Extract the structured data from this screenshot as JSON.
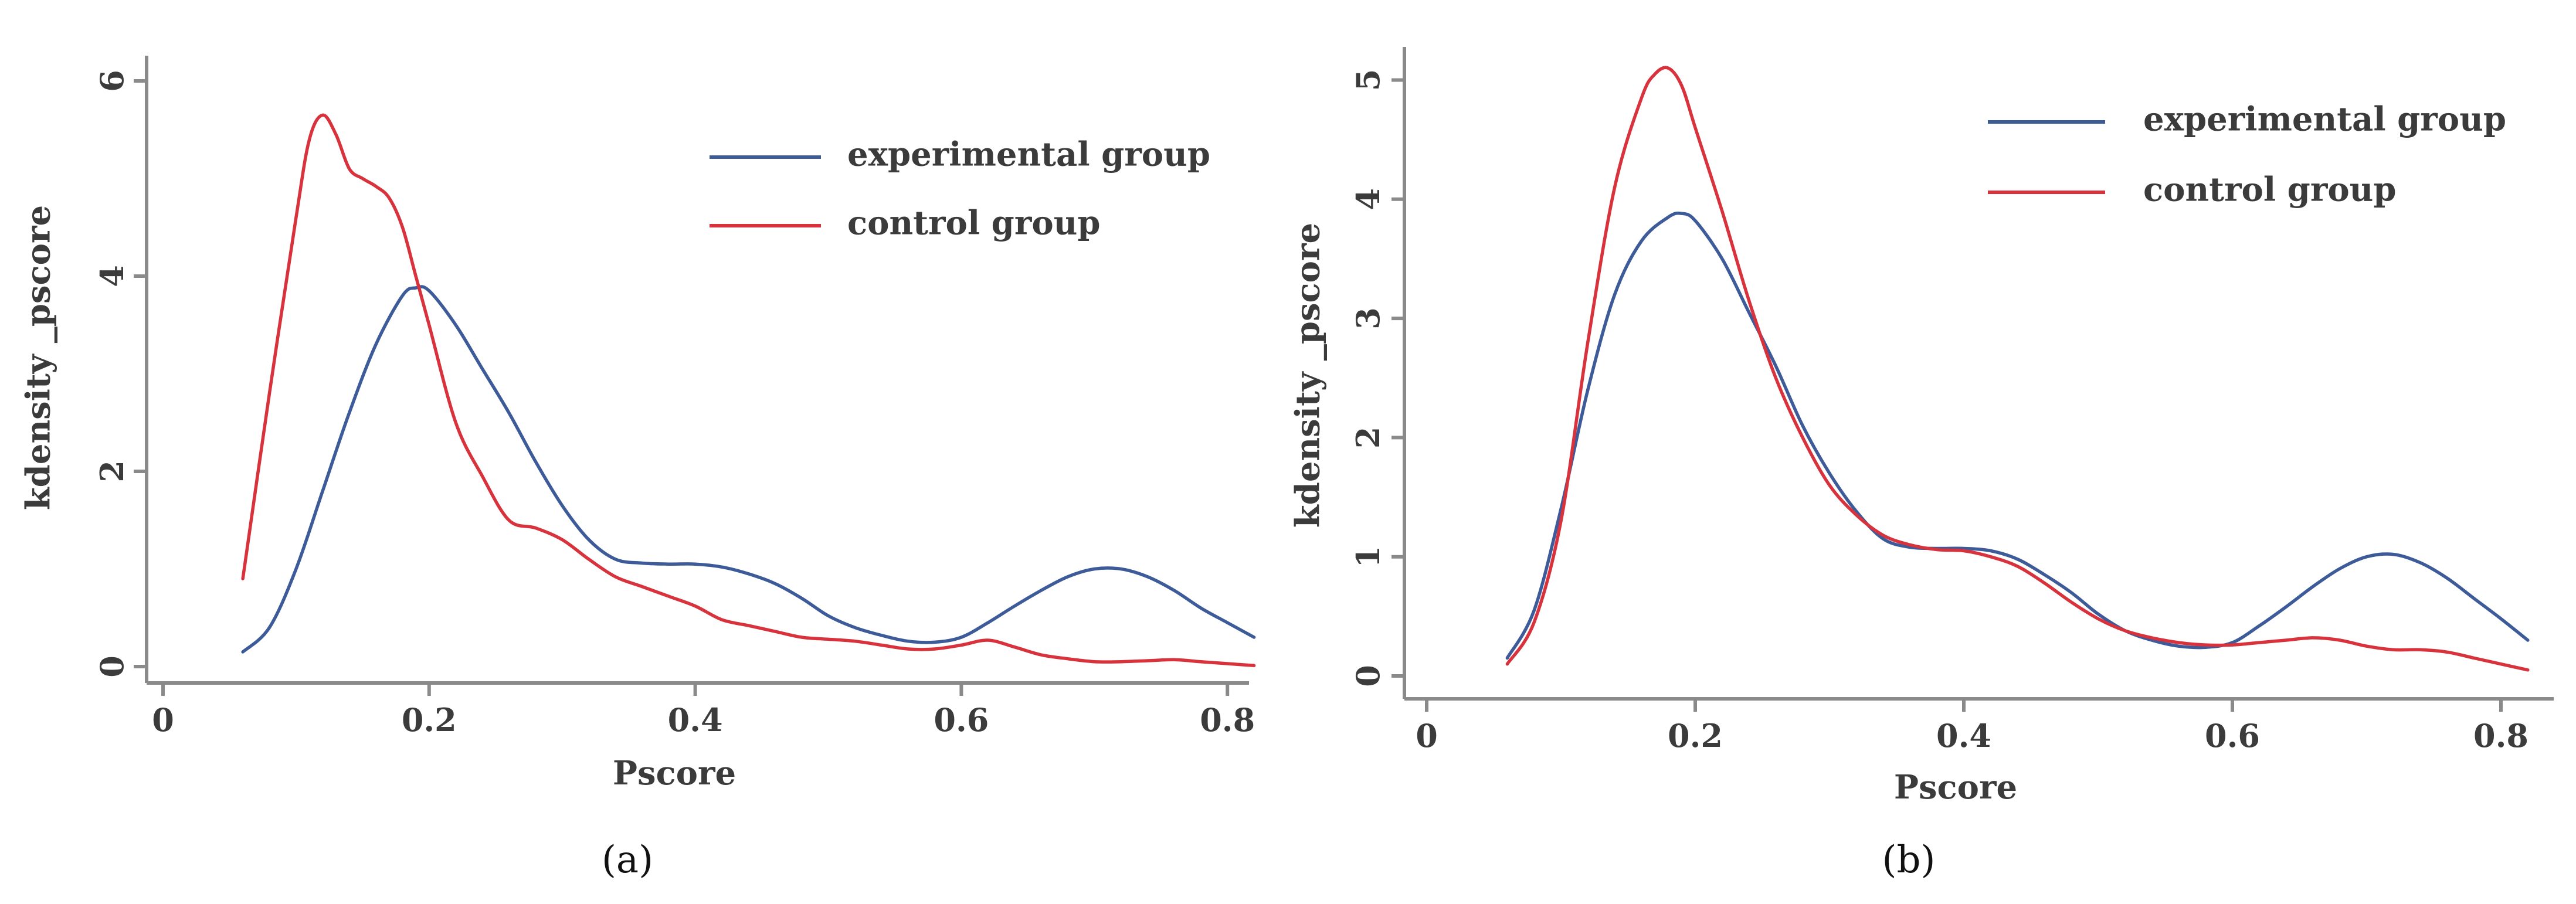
{
  "chart_data": [
    {
      "panel": "a",
      "caption": "(a)",
      "type": "line",
      "xlabel": "Pscore",
      "ylabel": "kdensity _pscore",
      "xlim": [
        0,
        0.83
      ],
      "ylim": [
        0,
        6.1
      ],
      "xticks": [
        0,
        0.2,
        0.4,
        0.6,
        0.8
      ],
      "xtick_labels": [
        "0",
        "0.2",
        "0.4",
        "0.6",
        "0.8"
      ],
      "yticks": [
        0,
        2,
        4,
        6
      ],
      "ytick_labels": [
        "0",
        "2",
        "4",
        "6"
      ],
      "legend": [
        "experimental group",
        "control group"
      ],
      "legend_position": "top-right",
      "series": [
        {
          "name": "experimental group",
          "color": "#3d5a99",
          "x": [
            0.06,
            0.08,
            0.1,
            0.12,
            0.14,
            0.16,
            0.18,
            0.19,
            0.2,
            0.22,
            0.24,
            0.26,
            0.28,
            0.3,
            0.32,
            0.34,
            0.36,
            0.38,
            0.4,
            0.42,
            0.44,
            0.46,
            0.48,
            0.5,
            0.52,
            0.54,
            0.56,
            0.58,
            0.6,
            0.62,
            0.64,
            0.66,
            0.68,
            0.7,
            0.72,
            0.74,
            0.76,
            0.78,
            0.8,
            0.82
          ],
          "y": [
            0.15,
            0.4,
            1.0,
            1.8,
            2.6,
            3.3,
            3.8,
            3.88,
            3.85,
            3.5,
            3.05,
            2.6,
            2.1,
            1.65,
            1.3,
            1.1,
            1.06,
            1.05,
            1.05,
            1.02,
            0.95,
            0.85,
            0.7,
            0.52,
            0.4,
            0.32,
            0.26,
            0.25,
            0.3,
            0.45,
            0.62,
            0.78,
            0.92,
            1.0,
            1.0,
            0.92,
            0.78,
            0.6,
            0.45,
            0.3
          ]
        },
        {
          "name": "control group",
          "color": "#d8323c",
          "x": [
            0.06,
            0.08,
            0.1,
            0.11,
            0.12,
            0.13,
            0.14,
            0.15,
            0.16,
            0.17,
            0.18,
            0.19,
            0.2,
            0.22,
            0.24,
            0.26,
            0.28,
            0.3,
            0.32,
            0.34,
            0.36,
            0.38,
            0.4,
            0.42,
            0.44,
            0.46,
            0.48,
            0.5,
            0.52,
            0.54,
            0.56,
            0.58,
            0.6,
            0.62,
            0.64,
            0.66,
            0.68,
            0.7,
            0.72,
            0.74,
            0.76,
            0.78,
            0.8,
            0.82
          ],
          "y": [
            0.9,
            2.8,
            4.6,
            5.4,
            5.65,
            5.45,
            5.1,
            5.0,
            4.92,
            4.8,
            4.5,
            4.0,
            3.5,
            2.5,
            1.95,
            1.5,
            1.42,
            1.3,
            1.1,
            0.92,
            0.82,
            0.72,
            0.62,
            0.48,
            0.42,
            0.36,
            0.3,
            0.28,
            0.26,
            0.22,
            0.18,
            0.18,
            0.22,
            0.27,
            0.2,
            0.12,
            0.08,
            0.05,
            0.05,
            0.06,
            0.07,
            0.05,
            0.03,
            0.01
          ]
        }
      ]
    },
    {
      "panel": "b",
      "caption": "(b)",
      "type": "line",
      "xlabel": "Pscore",
      "ylabel": "kdensity _pscore",
      "xlim": [
        0,
        0.83
      ],
      "ylim": [
        0,
        5.3
      ],
      "xticks": [
        0,
        0.2,
        0.4,
        0.6,
        0.8
      ],
      "xtick_labels": [
        "0",
        "0.2",
        "0.4",
        "0.6",
        "0.8"
      ],
      "yticks": [
        0,
        1,
        2,
        3,
        4,
        5
      ],
      "ytick_labels": [
        "0",
        "1",
        "2",
        "3",
        "4",
        "5"
      ],
      "legend": [
        "experimental group",
        "control group"
      ],
      "legend_position": "top-right",
      "series": [
        {
          "name": "experimental group",
          "color": "#3d5a99",
          "x": [
            0.06,
            0.08,
            0.1,
            0.12,
            0.14,
            0.16,
            0.18,
            0.19,
            0.2,
            0.22,
            0.24,
            0.26,
            0.28,
            0.3,
            0.32,
            0.34,
            0.36,
            0.38,
            0.4,
            0.42,
            0.44,
            0.46,
            0.48,
            0.5,
            0.52,
            0.54,
            0.56,
            0.58,
            0.6,
            0.62,
            0.64,
            0.66,
            0.68,
            0.7,
            0.72,
            0.74,
            0.76,
            0.78,
            0.8,
            0.82
          ],
          "y": [
            0.15,
            0.55,
            1.4,
            2.4,
            3.2,
            3.65,
            3.85,
            3.88,
            3.82,
            3.5,
            3.05,
            2.6,
            2.1,
            1.7,
            1.38,
            1.15,
            1.08,
            1.07,
            1.07,
            1.05,
            0.98,
            0.85,
            0.7,
            0.52,
            0.38,
            0.3,
            0.25,
            0.24,
            0.28,
            0.42,
            0.58,
            0.75,
            0.9,
            1.0,
            1.02,
            0.95,
            0.82,
            0.65,
            0.48,
            0.3
          ]
        },
        {
          "name": "control group",
          "color": "#d8323c",
          "x": [
            0.06,
            0.08,
            0.1,
            0.12,
            0.14,
            0.16,
            0.17,
            0.18,
            0.19,
            0.2,
            0.22,
            0.24,
            0.26,
            0.28,
            0.3,
            0.32,
            0.34,
            0.36,
            0.38,
            0.4,
            0.42,
            0.44,
            0.46,
            0.48,
            0.5,
            0.52,
            0.54,
            0.56,
            0.58,
            0.6,
            0.62,
            0.64,
            0.66,
            0.68,
            0.7,
            0.72,
            0.74,
            0.76,
            0.78,
            0.8,
            0.82
          ],
          "y": [
            0.1,
            0.45,
            1.3,
            2.8,
            4.1,
            4.85,
            5.05,
            5.1,
            4.95,
            4.6,
            3.9,
            3.15,
            2.5,
            2.0,
            1.6,
            1.35,
            1.18,
            1.1,
            1.06,
            1.05,
            1.0,
            0.92,
            0.78,
            0.62,
            0.48,
            0.38,
            0.32,
            0.28,
            0.26,
            0.26,
            0.28,
            0.3,
            0.32,
            0.3,
            0.25,
            0.22,
            0.22,
            0.2,
            0.15,
            0.1,
            0.05
          ]
        }
      ]
    }
  ]
}
